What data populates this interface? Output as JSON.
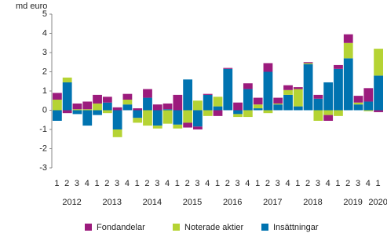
{
  "chart_data": {
    "type": "stacked_bar",
    "y_label": "md euro",
    "categories": [
      "1",
      "2",
      "3",
      "4",
      "1",
      "2",
      "3",
      "4",
      "1",
      "2",
      "3",
      "4",
      "1",
      "2",
      "3",
      "4",
      "1",
      "2",
      "3",
      "4",
      "1",
      "2",
      "3",
      "4",
      "1",
      "2",
      "3",
      "4",
      "1",
      "2",
      "3",
      "4",
      "1"
    ],
    "x_groups": [
      "2012",
      "2013",
      "2014",
      "2015",
      "2016",
      "2017",
      "2018",
      "2019",
      "2020"
    ],
    "series": [
      {
        "name": "Fondandelar",
        "color": "#9c1b7d",
        "values": [
          0.35,
          -0.15,
          0.3,
          0.4,
          0.45,
          0.3,
          0.15,
          0.3,
          0.1,
          0.45,
          0.3,
          0.3,
          0.8,
          -0.25,
          -0.15,
          0.05,
          -0.3,
          0.05,
          0.4,
          0.3,
          0.35,
          0.45,
          0.3,
          0.25,
          0.1,
          0.05,
          0.2,
          -0.3,
          0.2,
          0.45,
          0.35,
          0.7,
          -0.1
        ]
      },
      {
        "name": "Noterade aktier",
        "color": "#b5d334",
        "values": [
          0.55,
          0.25,
          0.05,
          0.05,
          0.35,
          -0.15,
          -0.4,
          0.25,
          -0.25,
          -0.8,
          -0.15,
          -0.7,
          -0.2,
          -0.65,
          0.5,
          -0.3,
          0.5,
          0.0,
          -0.15,
          -0.35,
          0.2,
          -0.15,
          0.05,
          0.25,
          0.9,
          0.05,
          -0.55,
          -0.25,
          -0.3,
          0.8,
          0.1,
          -0.05,
          1.4
        ]
      },
      {
        "name": "Insättningar",
        "color": "#0073b0",
        "values": [
          -0.55,
          1.45,
          -0.2,
          -0.8,
          -0.25,
          0.4,
          -1.0,
          0.3,
          -0.4,
          0.65,
          -0.8,
          0.05,
          -0.75,
          1.6,
          -0.85,
          0.8,
          0.2,
          2.15,
          -0.2,
          1.1,
          0.1,
          2.0,
          0.3,
          0.8,
          0.2,
          2.4,
          0.6,
          1.45,
          2.15,
          2.7,
          0.3,
          0.45,
          1.8
        ]
      }
    ],
    "ylim": [
      -3,
      5
    ],
    "yticks": [
      -3,
      -2,
      -1,
      0,
      1,
      2,
      3,
      4,
      5
    ],
    "grid": false
  }
}
